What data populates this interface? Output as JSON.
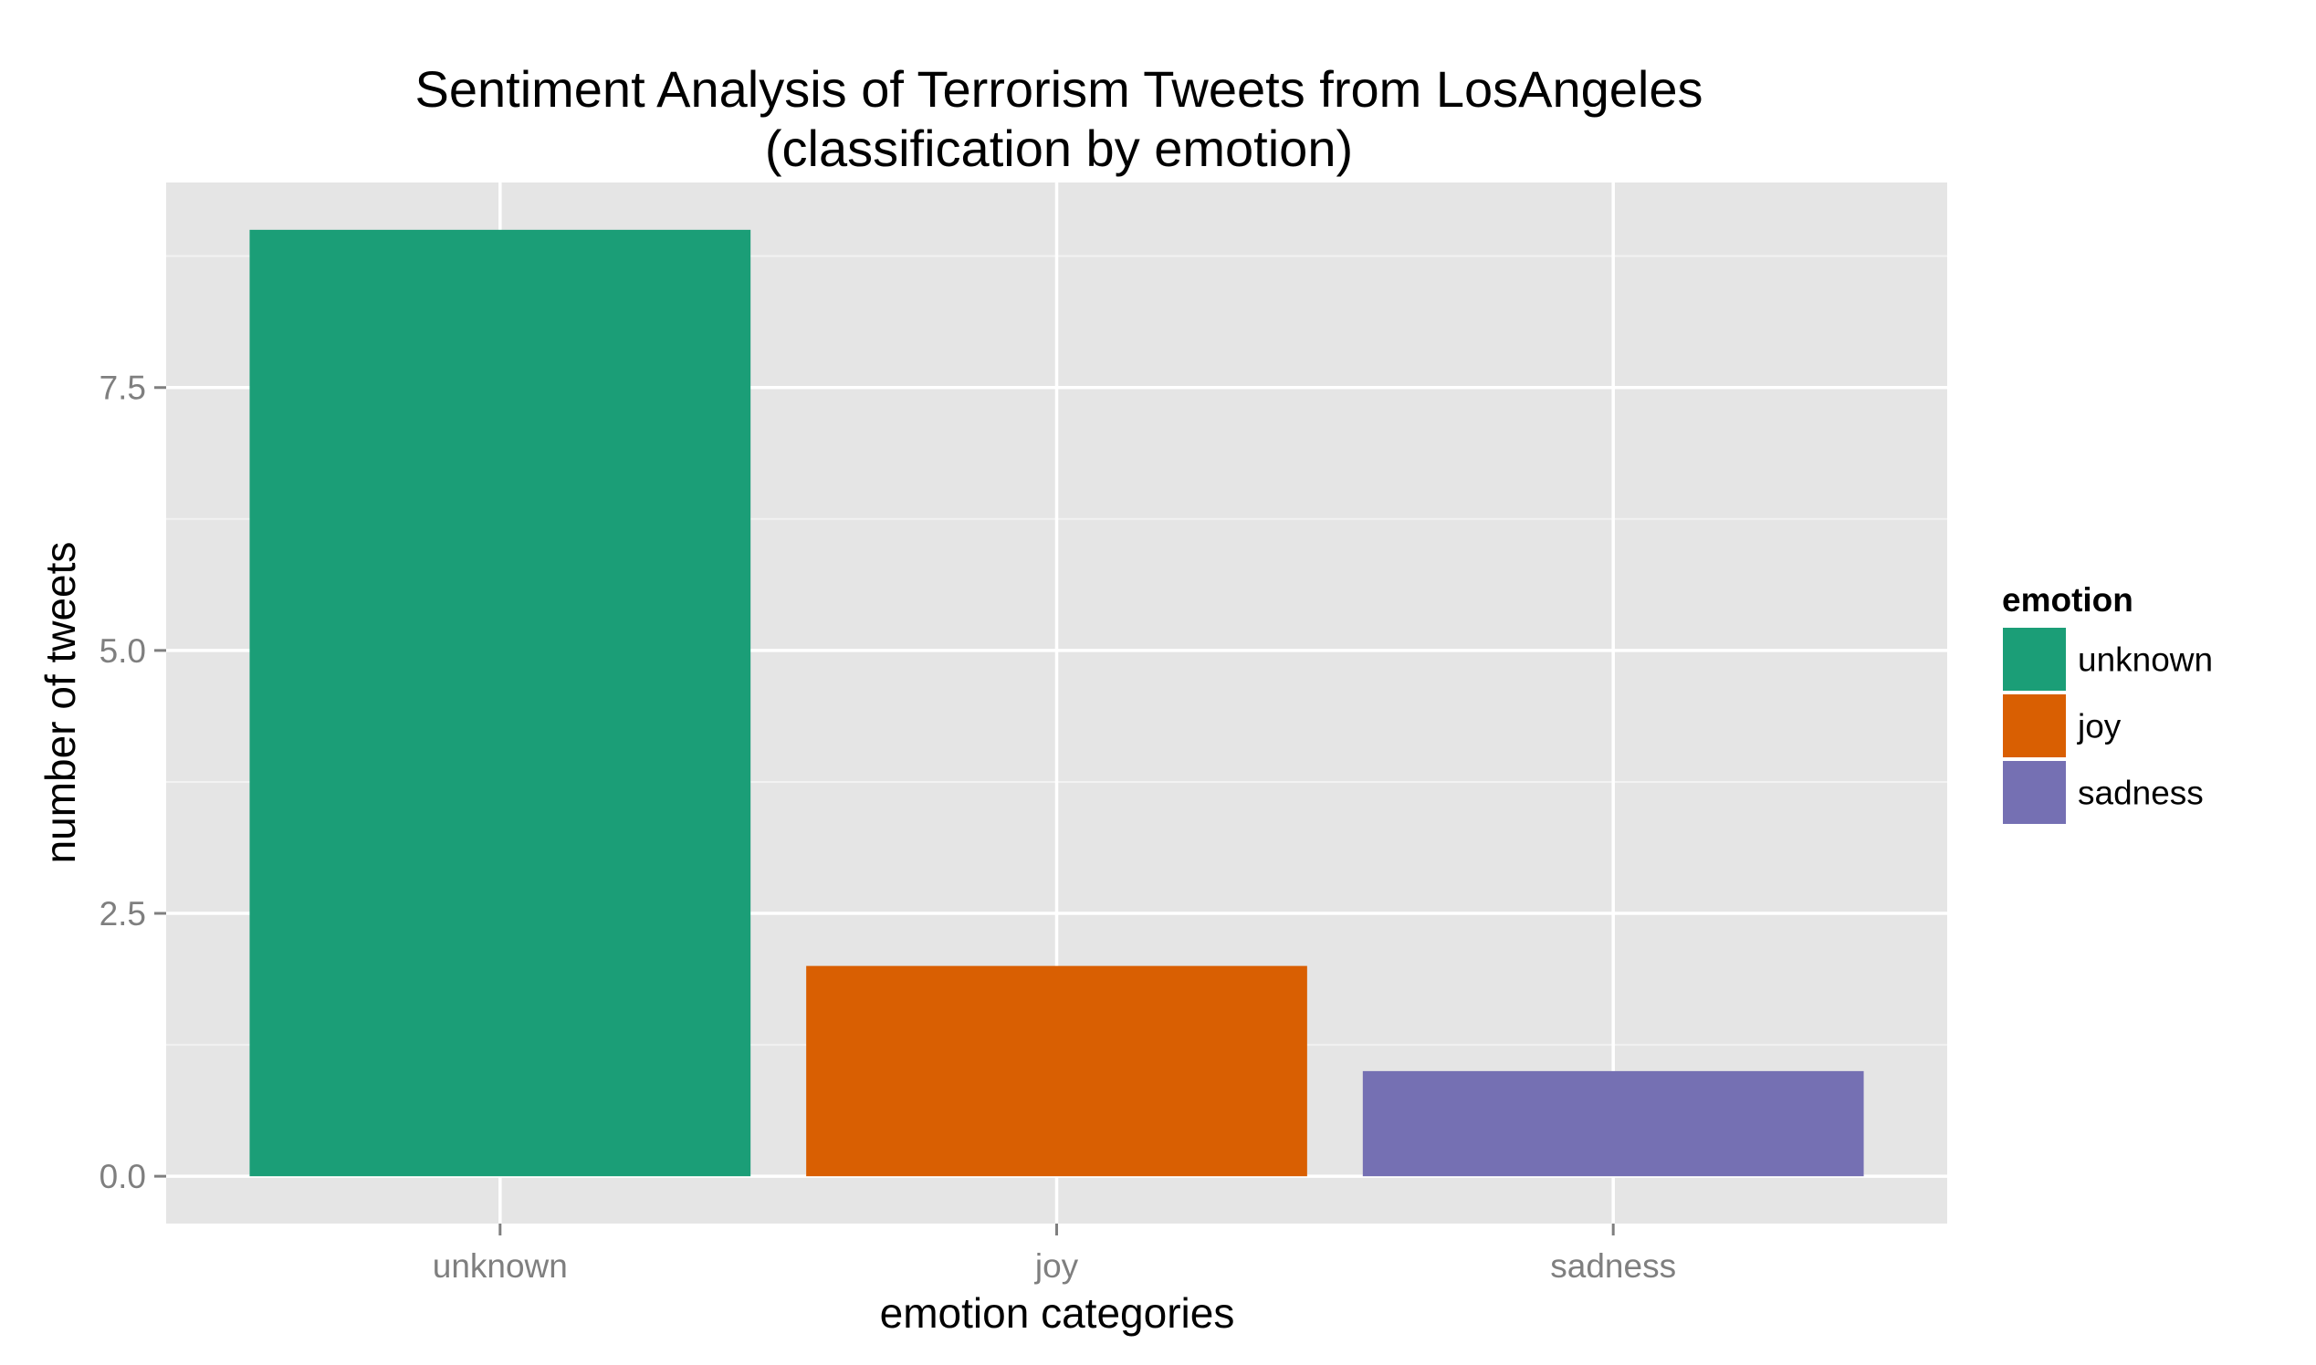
{
  "chart_data": {
    "type": "bar",
    "title": "Sentiment Analysis of Terrorism Tweets from LosAngeles",
    "subtitle": "(classification by emotion)",
    "xlabel": "emotion categories",
    "ylabel": "number of tweets",
    "categories": [
      "unknown",
      "joy",
      "sadness"
    ],
    "values": [
      9,
      2,
      1
    ],
    "ylim": [
      -0.45,
      9.45
    ],
    "yticks": [
      0.0,
      2.5,
      5.0,
      7.5
    ],
    "ytick_labels": [
      "0.0",
      "2.5",
      "5.0",
      "7.5"
    ],
    "grid": true,
    "legend": {
      "title": "emotion",
      "placement": "right",
      "entries": [
        "unknown",
        "joy",
        "sadness"
      ]
    },
    "colors": {
      "unknown": "#1b9e77",
      "joy": "#d95f02",
      "sadness": "#7570b3",
      "panel_background": "#e5e5e5",
      "grid_major": "#ffffff",
      "grid_minor": "#f2f2f2",
      "tick_label": "#7f7f7f",
      "text": "#000000"
    }
  }
}
